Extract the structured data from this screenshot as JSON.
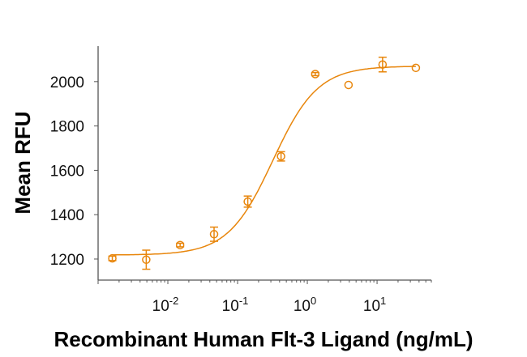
{
  "chart_data": {
    "type": "scatter",
    "title": "",
    "xlabel": "Recombinant Human Flt-3 Ligand (ng/mL)",
    "ylabel": "Mean RFU",
    "x_scale": "log",
    "xlim": [
      0.001,
      60
    ],
    "ylim": [
      1105,
      2160
    ],
    "x_ticks": [
      {
        "value": 0.01,
        "base": "10",
        "exp": "-2"
      },
      {
        "value": 0.1,
        "base": "10",
        "exp": "-1"
      },
      {
        "value": 1,
        "base": "10",
        "exp": "0"
      },
      {
        "value": 10,
        "base": "10",
        "exp": "1"
      }
    ],
    "y_ticks": [
      "1200",
      "1400",
      "1600",
      "1800",
      "2000"
    ],
    "grid": false,
    "color": "#E8860C",
    "series": [
      {
        "marker": "open-circle",
        "x": [
          0.0016,
          0.0049,
          0.015,
          0.046,
          0.14,
          0.42,
          1.3,
          3.9,
          12,
          36
        ],
        "y": [
          1203,
          1197,
          1263,
          1312,
          1459,
          1663,
          2034,
          1985,
          2077,
          2062
        ],
        "err": [
          10,
          43,
          8,
          32,
          25,
          21,
          7,
          0,
          33,
          0
        ]
      }
    ],
    "fit": {
      "model": "4PL",
      "bottom": 1218,
      "top": 2070,
      "ec50": 0.32,
      "hill": 1.35
    }
  }
}
